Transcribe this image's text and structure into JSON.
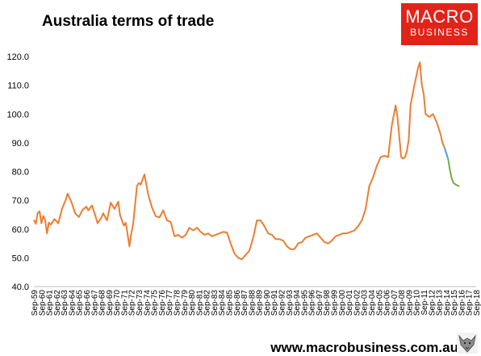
{
  "logo": {
    "line1": "MACRO",
    "line2": "BUSINESS",
    "color": "#e2231a"
  },
  "footer": {
    "url": "www.macrobusiness.com.au",
    "icon": "wolf-logo-icon"
  },
  "chart_data": {
    "type": "line",
    "title": "Australia terms of trade",
    "xlabel": "",
    "ylabel": "",
    "ylim": [
      40,
      120
    ],
    "yticks": [
      "40.0",
      "50.0",
      "60.0",
      "70.0",
      "80.0",
      "90.0",
      "100.0",
      "110.0",
      "120.0"
    ],
    "xticks": [
      "Sep-59",
      "Sep-61",
      "Sep-63",
      "Sep-65",
      "Sep-67",
      "Sep-69",
      "Sep-71",
      "Sep-73",
      "Sep-75",
      "Sep-77",
      "Sep-79",
      "Sep-81",
      "Sep-83",
      "Sep-85",
      "Sep-87",
      "Sep-89",
      "Sep-91",
      "Sep-93",
      "Sep-95",
      "Sep-97",
      "Sep-99",
      "Sep-01",
      "Sep-03",
      "Sep-05",
      "Sep-07",
      "Sep-09",
      "Sep-11",
      "Sep-13",
      "Sep-15",
      "Sep-17",
      "Sep-60",
      "Sep-62",
      "Sep-64",
      "Sep-66",
      "Sep-68",
      "Sep-70",
      "Sep-72",
      "Sep-74",
      "Sep-76",
      "Sep-78",
      "Sep-80",
      "Sep-82",
      "Sep-84",
      "Sep-86",
      "Sep-88",
      "Sep-90",
      "Sep-92",
      "Sep-94",
      "Sep-96",
      "Sep-98",
      "Sep-00",
      "Sep-02",
      "Sep-04",
      "Sep-06",
      "Sep-08",
      "Sep-10",
      "Sep-12",
      "Sep-14",
      "Sep-16",
      "Sep-18"
    ],
    "grid": false,
    "series": [
      {
        "color": "#ed7d31",
        "x": [
          1959.75,
          1960.0,
          1960.25,
          1960.5,
          1960.75,
          1961.0,
          1961.25,
          1961.5,
          1961.75,
          1962.0,
          1962.5,
          1963.0,
          1963.5,
          1964.0,
          1964.25,
          1964.75,
          1965.25,
          1965.75,
          1966.25,
          1966.75,
          1967.0,
          1967.5,
          1968.0,
          1968.25,
          1968.75,
          1969.0,
          1969.5,
          1970.0,
          1970.5,
          1971.0,
          1971.25,
          1971.75,
          1972.0,
          1972.5,
          1972.75,
          1973.0,
          1973.5,
          1973.75,
          1974.0,
          1974.5,
          1975.0,
          1975.5,
          1976.0,
          1976.5,
          1977.0,
          1977.5,
          1978.0,
          1978.5,
          1979.0,
          1979.5,
          1980.0,
          1980.5,
          1981.0,
          1981.5,
          1982.0,
          1982.5,
          1983.0,
          1983.5,
          1984.0,
          1984.5,
          1985.0,
          1985.5,
          1986.0,
          1986.5,
          1987.0,
          1987.5,
          1988.0,
          1988.5,
          1989.0,
          1989.5,
          1990.0,
          1990.5,
          1991.0,
          1991.5,
          1992.0,
          1992.5,
          1993.0,
          1993.5,
          1994.0,
          1994.5,
          1995.0,
          1995.5,
          1996.0,
          1996.5,
          1997.0,
          1997.5,
          1998.0,
          1998.5,
          1999.0,
          1999.5,
          2000.0,
          2000.5,
          2001.0,
          2001.5,
          2002.0,
          2002.5,
          2003.0,
          2003.5,
          2004.0,
          2004.5,
          2005.0,
          2005.5,
          2006.0,
          2006.5,
          2007.0,
          2007.5,
          2008.0,
          2008.25,
          2008.5,
          2008.75,
          2009.0,
          2009.25,
          2009.5,
          2009.75,
          2010.0,
          2010.5,
          2011.0,
          2011.25,
          2011.5,
          2011.75,
          2012.0,
          2012.5,
          2013.0,
          2013.5,
          2014.0,
          2014.25,
          2014.5
        ],
        "y": [
          63.2,
          61.8,
          65.5,
          66.2,
          62.0,
          64.6,
          63.2,
          58.5,
          62.3,
          61.5,
          63.5,
          62.0,
          67.0,
          70.2,
          72.3,
          69.5,
          65.5,
          64.2,
          66.7,
          67.8,
          66.5,
          68.2,
          64.2,
          62.0,
          64.0,
          65.5,
          63.0,
          69.2,
          67.0,
          69.5,
          64.8,
          61.2,
          62.2,
          54.0,
          58.5,
          62.0,
          75.0,
          76.0,
          75.5,
          79.0,
          72.0,
          67.5,
          64.5,
          64.0,
          66.5,
          63.0,
          62.5,
          57.5,
          58.0,
          57.0,
          58.0,
          60.5,
          59.5,
          60.5,
          59.0,
          58.0,
          58.5,
          57.5,
          58.0,
          58.5,
          59.0,
          58.8,
          55.0,
          51.5,
          50.0,
          49.5,
          51.0,
          52.5,
          57.0,
          63.0,
          63.0,
          61.0,
          58.5,
          58.0,
          56.5,
          56.5,
          56.0,
          54.0,
          53.0,
          53.0,
          55.0,
          55.5,
          57.0,
          57.5,
          58.0,
          58.5,
          57.0,
          55.5,
          55.0,
          56.0,
          57.5,
          58.0,
          58.5,
          58.5,
          59.0,
          59.5,
          61.0,
          63.0,
          67.0,
          75.0,
          78.0,
          82.0,
          85.0,
          85.5,
          85.0,
          96.0,
          103.0,
          99.0,
          92.0,
          85.0,
          84.5,
          85.0,
          87.0,
          91.0,
          103.0,
          110.0,
          116.0,
          118.0,
          110.0,
          107.0,
          100.0,
          99.0,
          100.0,
          97.0,
          93.0,
          90.0,
          88.5
        ]
      },
      {
        "color": "#5b9bd5",
        "x": [
          2014.5,
          2014.75,
          2015.0
        ],
        "y": [
          88.5,
          86.5,
          84.5
        ]
      },
      {
        "color": "#70ad47",
        "x": [
          2015.0,
          2015.25,
          2015.5,
          2015.75,
          2016.0,
          2016.5
        ],
        "y": [
          84.5,
          80.5,
          77.5,
          76.0,
          75.5,
          74.8
        ]
      }
    ]
  }
}
